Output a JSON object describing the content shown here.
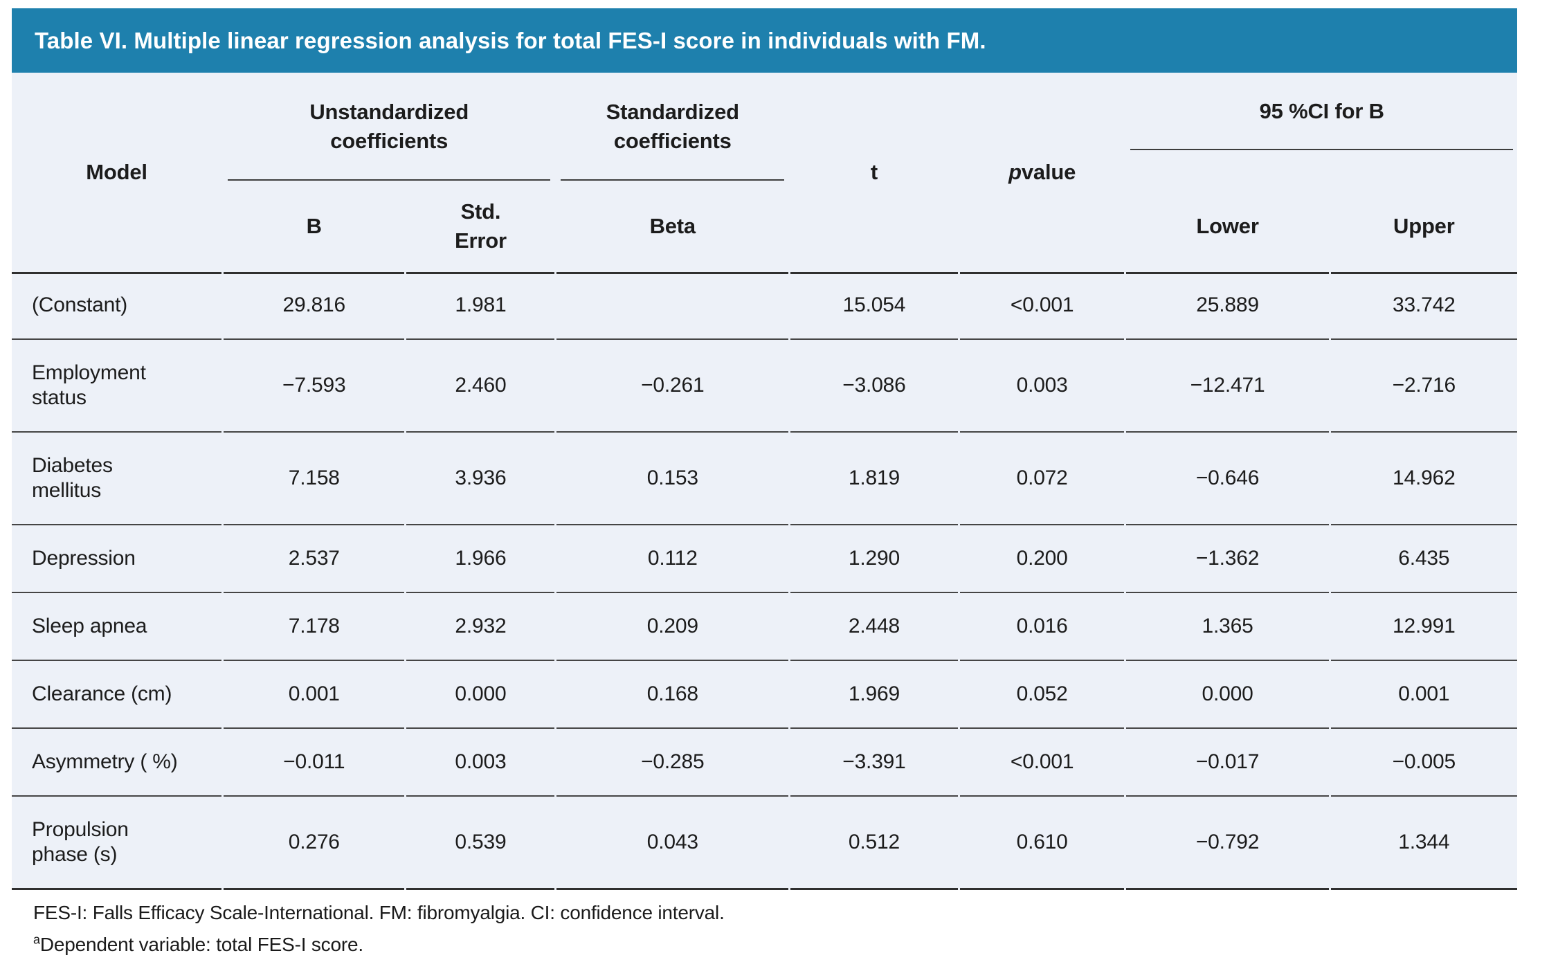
{
  "title": "Table VI. Multiple linear regression analysis for total FES-I score in individuals with FM.",
  "colors": {
    "title_bar_bg": "#1e80ad",
    "title_text": "#ffffff",
    "table_bg": "#edf1f8",
    "rule_dark": "#2f2f2f",
    "rule_row": "#454545",
    "text": "#1c1c1c"
  },
  "header": {
    "model": "Model",
    "unstandardized": "Unstandardized\ncoefficients",
    "standardized": "Standardized\ncoefficients",
    "t": "t",
    "p_italic": "p",
    "p_rest": " value",
    "ci": "95 %CI for B",
    "sub": {
      "b": "B",
      "std_error": "Std.\nError",
      "beta": "Beta",
      "lower": "Lower",
      "upper": "Upper"
    }
  },
  "rows": [
    {
      "model": "(Constant)",
      "b": "29.816",
      "std_error": "1.981",
      "beta": "",
      "t": "15.054",
      "p": "<0.001",
      "lower": "25.889",
      "upper": "33.742"
    },
    {
      "model": "Employment\nstatus",
      "b": "−7.593",
      "std_error": "2.460",
      "beta": "−0.261",
      "t": "−3.086",
      "p": "0.003",
      "lower": "−12.471",
      "upper": "−2.716"
    },
    {
      "model": "Diabetes\nmellitus",
      "b": "7.158",
      "std_error": "3.936",
      "beta": "0.153",
      "t": "1.819",
      "p": "0.072",
      "lower": "−0.646",
      "upper": "14.962"
    },
    {
      "model": "Depression",
      "b": "2.537",
      "std_error": "1.966",
      "beta": "0.112",
      "t": "1.290",
      "p": "0.200",
      "lower": "−1.362",
      "upper": "6.435"
    },
    {
      "model": "Sleep apnea",
      "b": "7.178",
      "std_error": "2.932",
      "beta": "0.209",
      "t": "2.448",
      "p": "0.016",
      "lower": "1.365",
      "upper": "12.991"
    },
    {
      "model": "Clearance (cm)",
      "b": "0.001",
      "std_error": "0.000",
      "beta": "0.168",
      "t": "1.969",
      "p": "0.052",
      "lower": "0.000",
      "upper": "0.001"
    },
    {
      "model": "Asymmetry ( %)",
      "b": "−0.011",
      "std_error": "0.003",
      "beta": "−0.285",
      "t": "−3.391",
      "p": "<0.001",
      "lower": "−0.017",
      "upper": "−0.005"
    },
    {
      "model": "Propulsion\nphase (s)",
      "b": "0.276",
      "std_error": "0.539",
      "beta": "0.043",
      "t": "0.512",
      "p": "0.610",
      "lower": "−0.792",
      "upper": "1.344"
    }
  ],
  "footnotes": {
    "line1": "FES-I: Falls Efficacy Scale-International. FM: fibromyalgia. CI: confidence interval.",
    "line2_sup": "a",
    "line2": "Dependent variable: total FES-I score."
  }
}
